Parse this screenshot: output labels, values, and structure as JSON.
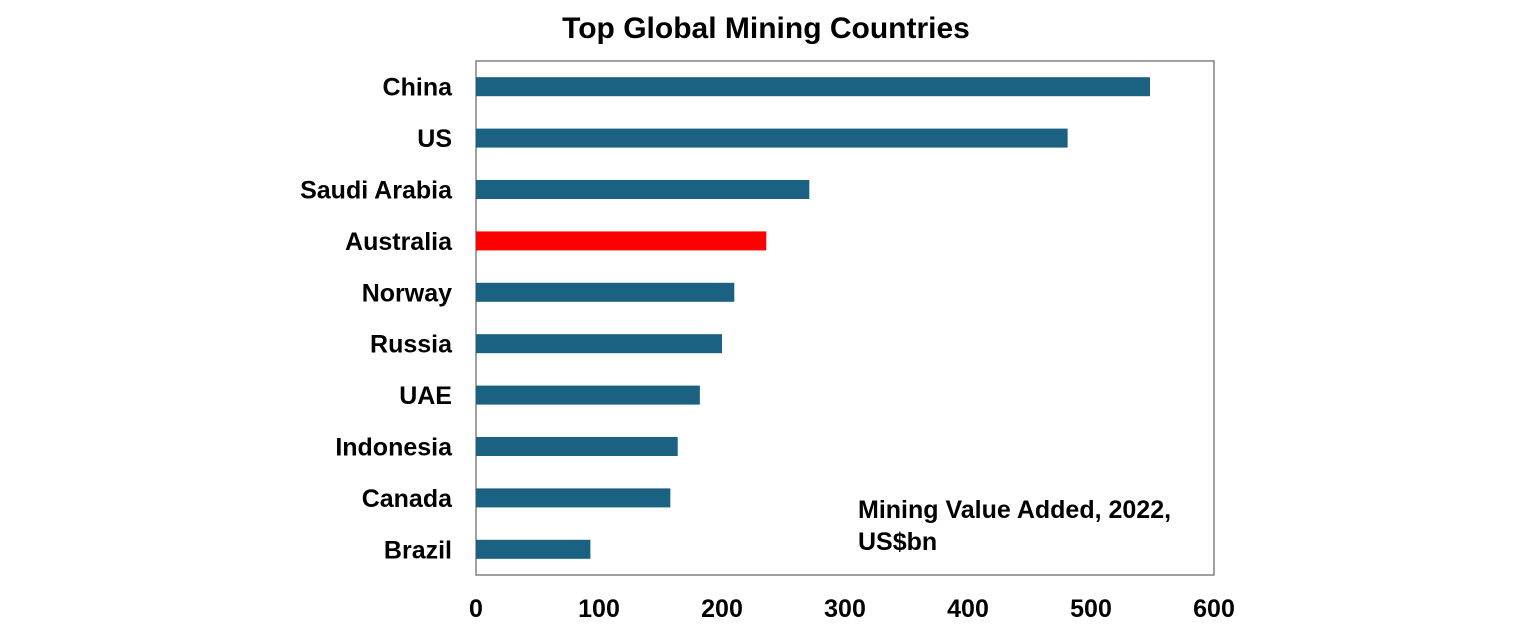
{
  "chart_data": {
    "type": "bar",
    "orientation": "horizontal",
    "title": "Top Global Mining Countries",
    "annotation_lines": [
      "Mining Value Added, 2022,",
      "US$bn"
    ],
    "categories": [
      "China",
      "US",
      "Saudi Arabia",
      "Australia",
      "Norway",
      "Russia",
      "UAE",
      "Indonesia",
      "Canada",
      "Brazil"
    ],
    "values": [
      548,
      481,
      271,
      236,
      210,
      200,
      182,
      164,
      158,
      93
    ],
    "bar_colors": [
      "#1a6182",
      "#1a6182",
      "#1a6182",
      "#ff0000",
      "#1a6182",
      "#1a6182",
      "#1a6182",
      "#1a6182",
      "#1a6182",
      "#1a6182"
    ],
    "highlight": "Australia",
    "xlim": [
      0,
      600
    ],
    "xticks": [
      "0",
      "100",
      "200",
      "300",
      "400",
      "500",
      "600"
    ],
    "xlabel": "",
    "ylabel": "",
    "grid": false,
    "legend": "none"
  },
  "colors": {
    "bar": "#1a6182",
    "highlight": "#ff0000",
    "frame": "#808080"
  }
}
